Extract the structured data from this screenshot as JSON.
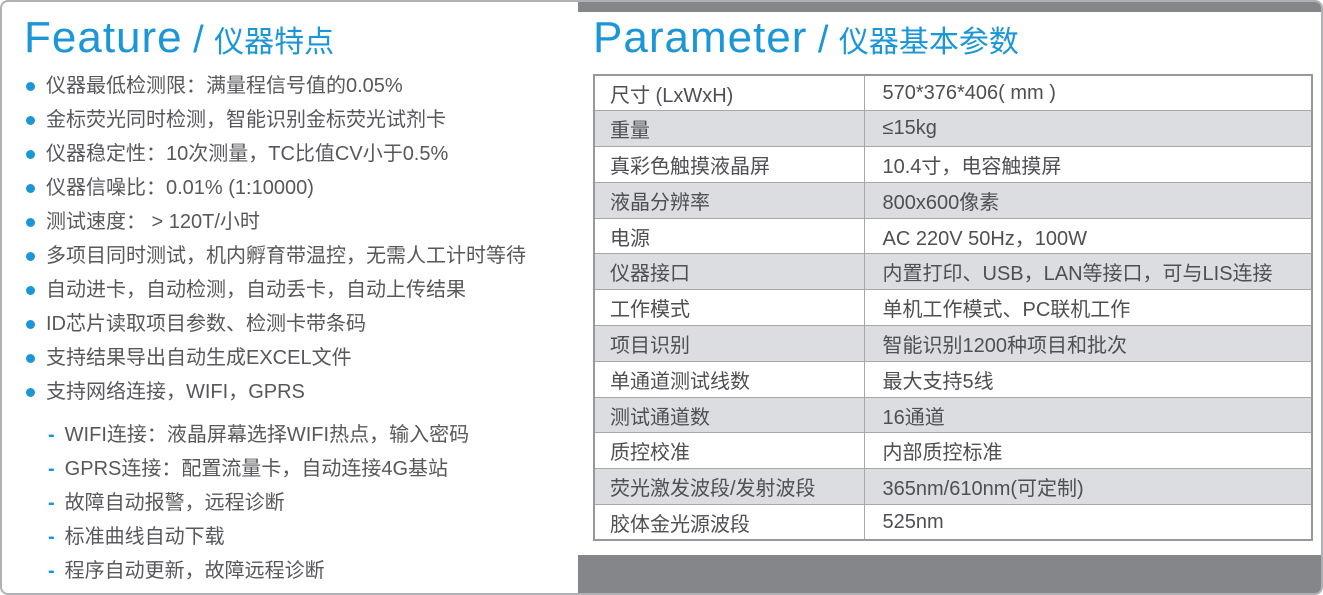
{
  "colors": {
    "accent_blue": "#1b96d7",
    "body_text": "#57585b",
    "table_text": "#4e4f52",
    "row_stripe_gray": "#dcdde0",
    "side_bar_gray": "#858689"
  },
  "feature": {
    "title_en": "Feature",
    "title_sep": "/",
    "title_zh": "仪器特点",
    "bullets": [
      "仪器最低检测限：满量程信号值的0.05%",
      "金标荧光同时检测，智能识别金标荧光试剂卡",
      "仪器稳定性：10次测量，TC比值CV小于0.5%",
      "仪器信噪比：0.01% (1:10000)",
      "测试速度： > 120T/小时",
      "多项目同时测试，机内孵育带温控，无需人工计时等待",
      "自动进卡，自动检测，自动丢卡，自动上传结果",
      "ID芯片读取项目参数、检测卡带条码",
      "支持结果导出自动生成EXCEL文件",
      "支持网络连接，WIFI，GPRS"
    ],
    "sub_bullets": [
      "WIFI连接：液晶屏幕选择WIFI热点，输入密码",
      "GPRS连接：配置流量卡，自动连接4G基站",
      "故障自动报警，远程诊断",
      "标准曲线自动下载",
      "程序自动更新，故障远程诊断"
    ]
  },
  "parameter": {
    "title_en": "Parameter",
    "title_sep": "/",
    "title_zh": "仪器基本参数",
    "rows": [
      {
        "label": "尺寸 (LxWxH)",
        "value": "570*376*406( mm )"
      },
      {
        "label": "重量",
        "value": "≤15kg"
      },
      {
        "label": "真彩色触摸液晶屏",
        "value": "10.4寸，电容触摸屏"
      },
      {
        "label": "液晶分辨率",
        "value": "800x600像素"
      },
      {
        "label": "电源",
        "value": "AC 220V 50Hz，100W"
      },
      {
        "label": "仪器接口",
        "value": "内置打印、USB，LAN等接口，可与LIS连接"
      },
      {
        "label": "工作模式",
        "value": "单机工作模式、PC联机工作"
      },
      {
        "label": "项目识别",
        "value": "智能识别1200种项目和批次"
      },
      {
        "label": "单通道测试线数",
        "value": "最大支持5线"
      },
      {
        "label": "测试通道数",
        "value": "16通道"
      },
      {
        "label": "质控校准",
        "value": "内部质控标准"
      },
      {
        "label": "荧光激发波段/发射波段",
        "value": "365nm/610nm(可定制)"
      },
      {
        "label": "胶体金光源波段",
        "value": "525nm"
      }
    ]
  }
}
